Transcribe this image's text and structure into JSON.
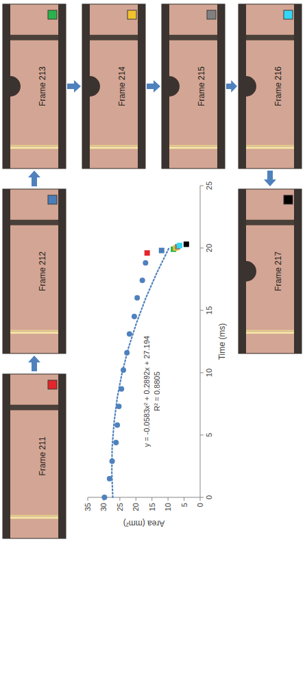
{
  "chart_data": {
    "type": "scatter",
    "xlabel": "Time (ms)",
    "ylabel": "Area (mm²)",
    "xlim": [
      0,
      25
    ],
    "xticks": [
      0,
      5,
      10,
      15,
      20,
      25
    ],
    "ylim": [
      0,
      35
    ],
    "yticks": [
      0,
      5,
      10,
      15,
      20,
      25,
      30,
      35
    ],
    "grid": false,
    "annotations": [
      "y = -0.0583x² + 0.2892x + 27.194",
      "R² = 0.8805"
    ],
    "series": [
      {
        "type": "scatter",
        "marker": "circle",
        "color": "#4f81bd",
        "x": [
          0,
          1.5,
          2.9,
          4.4,
          5.8,
          7.3,
          8.7,
          10.2,
          11.6,
          13.1,
          14.5,
          16.0,
          17.4,
          18.8
        ],
        "values": [
          29.8,
          28.2,
          27.4,
          26.2,
          25.8,
          25.3,
          24.5,
          23.9,
          22.8,
          22.0,
          20.5,
          19.6,
          18.0,
          17.0
        ]
      },
      {
        "type": "scatter",
        "marker": "square",
        "colors": [
          "#e3262b",
          "#4a7ebb",
          "#2ab34b",
          "#f2c12e",
          "#808080",
          "#33d6f5",
          "#000000"
        ],
        "x": [
          19.6,
          19.8,
          19.9,
          20.0,
          20.1,
          20.2,
          20.3
        ],
        "values": [
          16.5,
          12.0,
          8.3,
          7.6,
          7.0,
          6.4,
          4.3
        ]
      },
      {
        "type": "line",
        "line_style": "dotted",
        "color": "#4f81bd",
        "x": [
          0,
          2,
          4,
          6,
          8,
          10,
          12,
          14,
          16,
          18,
          20
        ],
        "values": [
          27.2,
          27.5,
          27.4,
          26.8,
          25.8,
          24.3,
          22.3,
          19.8,
          16.9,
          13.5,
          9.7
        ]
      }
    ]
  },
  "frames": [
    {
      "label": "Frame 211"
    },
    {
      "label": "Frame 212"
    },
    {
      "label": "Frame 213"
    },
    {
      "label": "Frame 214"
    },
    {
      "label": "Frame 215"
    },
    {
      "label": "Frame 216"
    },
    {
      "label": "Frame 217"
    }
  ]
}
